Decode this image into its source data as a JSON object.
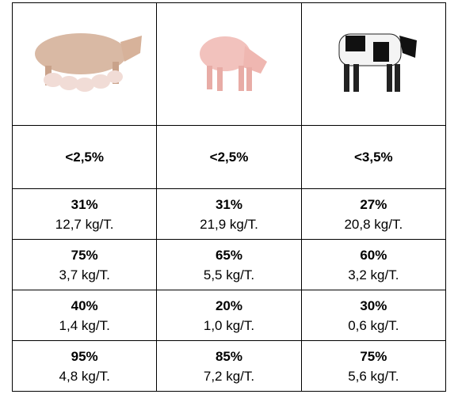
{
  "table": {
    "rows": [
      [
        "<2,5%",
        "<2,5%",
        "<3,5%"
      ],
      [
        {
          "pct": "31%",
          "amount": "12,7 kg/T."
        },
        {
          "pct": "31%",
          "amount": "21,9 kg/T."
        },
        {
          "pct": "27%",
          "amount": "20,8 kg/T."
        }
      ],
      [
        {
          "pct": "75%",
          "amount": "3,7 kg/T."
        },
        {
          "pct": "65%",
          "amount": "5,5 kg/T."
        },
        {
          "pct": "60%",
          "amount": "3,2 kg/T."
        }
      ],
      [
        {
          "pct": "40%",
          "amount": "1,4 kg/T."
        },
        {
          "pct": "20%",
          "amount": "1,0 kg/T."
        },
        {
          "pct": "30%",
          "amount": "0,6 kg/T."
        }
      ],
      [
        {
          "pct": "95%",
          "amount": "4,8 kg/T."
        },
        {
          "pct": "85%",
          "amount": "7,2 kg/T."
        },
        {
          "pct": "75%",
          "amount": "5,6 kg/T."
        }
      ]
    ]
  }
}
